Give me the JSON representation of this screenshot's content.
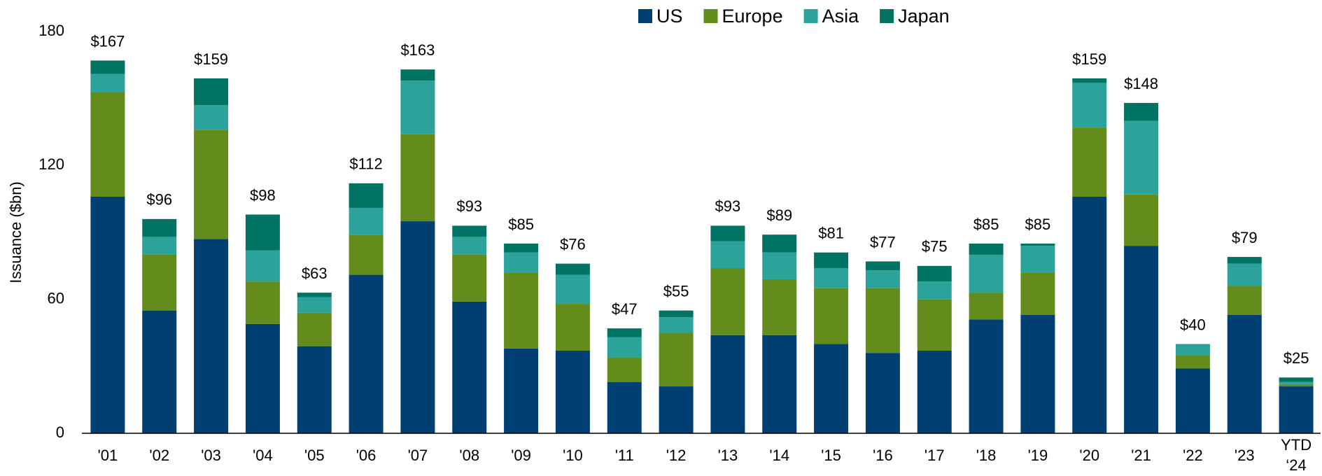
{
  "chart_data": {
    "type": "stacked_bar",
    "y_label": "Issuance ($bn)",
    "categories": [
      "'01",
      "'02",
      "'03",
      "'04",
      "'05",
      "'06",
      "'07",
      "'08",
      "'09",
      "'10",
      "'11",
      "'12",
      "'13",
      "'14",
      "'15",
      "'16",
      "'17",
      "'18",
      "'19",
      "'20",
      "'21",
      "'22",
      "'23",
      "YTD ‘24"
    ],
    "series": [
      {
        "name": "US",
        "color": "#003f72",
        "values": [
          106,
          55,
          87,
          49,
          39,
          71,
          95,
          59,
          38,
          37,
          23,
          21,
          44,
          44,
          40,
          36,
          37,
          51,
          53,
          106,
          84,
          29,
          53,
          21
        ]
      },
      {
        "name": "Europe",
        "color": "#648c1c",
        "values": [
          47,
          25,
          49,
          19,
          15,
          18,
          39,
          21,
          34,
          21,
          11,
          24,
          30,
          25,
          25,
          29,
          23,
          12,
          19,
          31,
          23,
          6,
          13,
          1
        ]
      },
      {
        "name": "Asia",
        "color": "#2ca39a",
        "values": [
          8,
          8,
          11,
          14,
          7,
          12,
          24,
          8,
          9,
          13,
          9,
          7,
          12,
          12,
          9,
          8,
          8,
          17,
          12,
          20,
          33,
          5,
          10,
          1
        ]
      },
      {
        "name": "Japan",
        "color": "#007363",
        "values": [
          6,
          8,
          12,
          16,
          2,
          11,
          5,
          5,
          4,
          5,
          4,
          3,
          7,
          8,
          7,
          4,
          7,
          5,
          1,
          2,
          8,
          0,
          3,
          2
        ]
      }
    ],
    "totals": [
      167,
      96,
      159,
      98,
      63,
      112,
      163,
      93,
      85,
      76,
      47,
      55,
      93,
      89,
      81,
      77,
      75,
      85,
      85,
      159,
      148,
      40,
      79,
      25
    ],
    "total_labels": [
      "$167",
      "$96",
      "$159",
      "$98",
      "$63",
      "$112",
      "$163",
      "$93",
      "$85",
      "$76",
      "$47",
      "$55",
      "$93",
      "$89",
      "$81",
      "$77",
      "$75",
      "$85",
      "$85",
      "$159",
      "$148",
      "$40",
      "$79",
      "$25"
    ],
    "ylim": [
      0,
      180
    ],
    "yticks": [
      0,
      60,
      120,
      180
    ],
    "grid": false,
    "legend": "top"
  }
}
